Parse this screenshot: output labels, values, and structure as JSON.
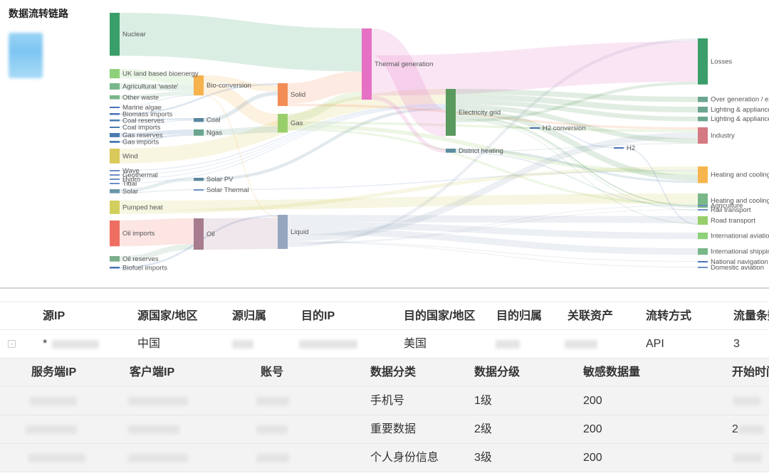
{
  "page": {
    "title": "数据流转链路"
  },
  "chart_data": {
    "type": "sankey",
    "nodes": [
      {
        "id": "n0",
        "label": "Nuclear",
        "color": "#3a9e6a"
      },
      {
        "id": "n1",
        "label": "UK land based bioenergy",
        "color": "#8fd07a"
      },
      {
        "id": "n2",
        "label": "Agricultural 'waste'",
        "color": "#79b788"
      },
      {
        "id": "n3",
        "label": "Other waste",
        "color": "#79b788"
      },
      {
        "id": "n4",
        "label": "Marine algae",
        "color": "#4a72b8"
      },
      {
        "id": "n5",
        "label": "Biomass imports",
        "color": "#4a72b8"
      },
      {
        "id": "n6",
        "label": "Coal reserves",
        "color": "#4a7ab0"
      },
      {
        "id": "n7",
        "label": "Coal imports",
        "color": "#4a7ab0"
      },
      {
        "id": "n8",
        "label": "Gas reserves",
        "color": "#4a7ab0"
      },
      {
        "id": "n9",
        "label": "Gas imports",
        "color": "#4a7ab0"
      },
      {
        "id": "n10",
        "label": "Wind",
        "color": "#d8c95a"
      },
      {
        "id": "n11",
        "label": "Wave",
        "color": "#6b8ec8"
      },
      {
        "id": "n12",
        "label": "Geothermal",
        "color": "#6b8ec8"
      },
      {
        "id": "n13",
        "label": "Hydro",
        "color": "#6b8ec8"
      },
      {
        "id": "n14",
        "label": "Tidal",
        "color": "#6b8ec8"
      },
      {
        "id": "n15",
        "label": "Solar",
        "color": "#6b96a8"
      },
      {
        "id": "n16",
        "label": "Pumped heat",
        "color": "#d3cf5e"
      },
      {
        "id": "n17",
        "label": "Oil imports",
        "color": "#ee6f62"
      },
      {
        "id": "n18",
        "label": "Oil reserves",
        "color": "#7cae8c"
      },
      {
        "id": "n19",
        "label": "Biofuel imports",
        "color": "#4a72b8"
      },
      {
        "id": "n20",
        "label": "Bio-conversion",
        "color": "#f5b24d"
      },
      {
        "id": "n21",
        "label": "Coal",
        "color": "#5a86a0"
      },
      {
        "id": "n22",
        "label": "Ngas",
        "color": "#6aa590"
      },
      {
        "id": "n23",
        "label": "Solar PV",
        "color": "#5a86a0"
      },
      {
        "id": "n24",
        "label": "Solar Thermal",
        "color": "#6b8ec8"
      },
      {
        "id": "n25",
        "label": "Oil",
        "color": "#a67c8e"
      },
      {
        "id": "n26",
        "label": "Solid",
        "color": "#f28d55"
      },
      {
        "id": "n27",
        "label": "Gas",
        "color": "#99cf6b"
      },
      {
        "id": "n28",
        "label": "Liquid",
        "color": "#96a6bf"
      },
      {
        "id": "n29",
        "label": "Thermal generation",
        "color": "#e670c4"
      },
      {
        "id": "n30",
        "label": "Electricity grid",
        "color": "#5a9a5e"
      },
      {
        "id": "n31",
        "label": "District heating",
        "color": "#5a8ea0"
      },
      {
        "id": "n32",
        "label": "H2 conversion",
        "color": "#4a72b8"
      },
      {
        "id": "n33",
        "label": "H2",
        "color": "#4a72b8"
      },
      {
        "id": "n34",
        "label": "Losses",
        "color": "#3a9e6a"
      },
      {
        "id": "n35",
        "label": "Over generation / exports",
        "color": "#6aa590"
      },
      {
        "id": "n36",
        "label": "Lighting & appliances - domestic",
        "color": "#6aa590"
      },
      {
        "id": "n37",
        "label": "Lighting & appliances - commercial",
        "color": "#6aa590"
      },
      {
        "id": "n38",
        "label": "Industry",
        "color": "#d57a82"
      },
      {
        "id": "n39",
        "label": "Heating and cooling - homes",
        "color": "#f6b64d"
      },
      {
        "id": "n40",
        "label": "Heating and cooling - commercial",
        "color": "#79b788"
      },
      {
        "id": "n41",
        "label": "Agriculture",
        "color": "#6b8ec8"
      },
      {
        "id": "n42",
        "label": "Rail transport",
        "color": "#6b8ec8"
      },
      {
        "id": "n43",
        "label": "Road transport",
        "color": "#99cf6b"
      },
      {
        "id": "n44",
        "label": "International aviation",
        "color": "#8fd07a"
      },
      {
        "id": "n45",
        "label": "International shipping",
        "color": "#79b788"
      },
      {
        "id": "n46",
        "label": "National navigation",
        "color": "#4a72b8"
      },
      {
        "id": "n47",
        "label": "Domestic aviation",
        "color": "#6b8ec8"
      }
    ],
    "links": [
      {
        "source": "n0",
        "target": "n29",
        "value": 839
      },
      {
        "source": "n1",
        "target": "n20",
        "value": 182
      },
      {
        "source": "n2",
        "target": "n20",
        "value": 124
      },
      {
        "source": "n3",
        "target": "n20",
        "value": 78
      },
      {
        "source": "n4",
        "target": "n20",
        "value": 4
      },
      {
        "source": "n5",
        "target": "n26",
        "value": 35
      },
      {
        "source": "n6",
        "target": "n21",
        "value": 35
      },
      {
        "source": "n7",
        "target": "n21",
        "value": 11
      },
      {
        "source": "n8",
        "target": "n22",
        "value": 82
      },
      {
        "source": "n9",
        "target": "n22",
        "value": 40
      },
      {
        "source": "n10",
        "target": "n30",
        "value": 289
      },
      {
        "source": "n11",
        "target": "n30",
        "value": 19
      },
      {
        "source": "n12",
        "target": "n30",
        "value": 7
      },
      {
        "source": "n13",
        "target": "n30",
        "value": 7
      },
      {
        "source": "n14",
        "target": "n30",
        "value": 9
      },
      {
        "source": "n15",
        "target": "n23",
        "value": 60
      },
      {
        "source": "n15",
        "target": "n24",
        "value": 19
      },
      {
        "source": "n16",
        "target": "n40",
        "value": 193
      },
      {
        "source": "n16",
        "target": "n39",
        "value": 70
      },
      {
        "source": "n17",
        "target": "n25",
        "value": 504
      },
      {
        "source": "n18",
        "target": "n25",
        "value": 107
      },
      {
        "source": "n19",
        "target": "n28",
        "value": 35
      },
      {
        "source": "n20",
        "target": "n26",
        "value": 127
      },
      {
        "source": "n20",
        "target": "n27",
        "value": 244
      },
      {
        "source": "n20",
        "target": "n28",
        "value": 20
      },
      {
        "source": "n21",
        "target": "n26",
        "value": 75
      },
      {
        "source": "n22",
        "target": "n27",
        "value": 122
      },
      {
        "source": "n23",
        "target": "n30",
        "value": 59
      },
      {
        "source": "n24",
        "target": "n39",
        "value": 19
      },
      {
        "source": "n25",
        "target": "n28",
        "value": 611
      },
      {
        "source": "n26",
        "target": "n29",
        "value": 400
      },
      {
        "source": "n26",
        "target": "n38",
        "value": 46
      },
      {
        "source": "n27",
        "target": "n29",
        "value": 151
      },
      {
        "source": "n27",
        "target": "n38",
        "value": 48
      },
      {
        "source": "n27",
        "target": "n39",
        "value": 80
      },
      {
        "source": "n27",
        "target": "n40",
        "value": 42
      },
      {
        "source": "n28",
        "target": "n43",
        "value": 137
      },
      {
        "source": "n28",
        "target": "n44",
        "value": 128
      },
      {
        "source": "n28",
        "target": "n45",
        "value": 128
      },
      {
        "source": "n28",
        "target": "n38",
        "value": 121
      },
      {
        "source": "n28",
        "target": "n46",
        "value": 15
      },
      {
        "source": "n28",
        "target": "n47",
        "value": 15
      },
      {
        "source": "n28",
        "target": "n41",
        "value": 10
      },
      {
        "source": "n28",
        "target": "n42",
        "value": 8
      },
      {
        "source": "n28",
        "target": "n34",
        "value": 57
      },
      {
        "source": "n29",
        "target": "n30",
        "value": 525
      },
      {
        "source": "n29",
        "target": "n34",
        "value": 787
      },
      {
        "source": "n29",
        "target": "n31",
        "value": 79
      },
      {
        "source": "n30",
        "target": "n35",
        "value": 104
      },
      {
        "source": "n30",
        "target": "n36",
        "value": 114
      },
      {
        "source": "n30",
        "target": "n37",
        "value": 90
      },
      {
        "source": "n30",
        "target": "n38",
        "value": 93
      },
      {
        "source": "n30",
        "target": "n39",
        "value": 110
      },
      {
        "source": "n30",
        "target": "n40",
        "value": 23
      },
      {
        "source": "n30",
        "target": "n41",
        "value": 12
      },
      {
        "source": "n30",
        "target": "n42",
        "value": 6
      },
      {
        "source": "n30",
        "target": "n43",
        "value": 10
      },
      {
        "source": "n30",
        "target": "n32",
        "value": 20
      },
      {
        "source": "n30",
        "target": "n34",
        "value": 56
      },
      {
        "source": "n31",
        "target": "n39",
        "value": 46
      },
      {
        "source": "n31",
        "target": "n38",
        "value": 12
      },
      {
        "source": "n31",
        "target": "n40",
        "value": 21
      },
      {
        "source": "n32",
        "target": "n33",
        "value": 20
      },
      {
        "source": "n33",
        "target": "n43",
        "value": 20
      }
    ]
  },
  "main_table": {
    "columns": [
      "源IP",
      "源国家/地区",
      "源归属",
      "目的IP",
      "目的国家/地区",
      "目的归属",
      "关联资产",
      "流转方式",
      "流量条数"
    ],
    "row": {
      "expand_symbol": "-",
      "src_ip_prefix": "*",
      "src_country": "中国",
      "dst_country": "美国",
      "flow_method": "API",
      "flow_count": "3"
    }
  },
  "sub_table": {
    "columns": [
      "服务端IP",
      "客户端IP",
      "账号",
      "数据分类",
      "数据分级",
      "敏感数据量",
      "开始时间"
    ],
    "rows": [
      {
        "category": "手机号",
        "level": "1级",
        "sensitive_count": "200"
      },
      {
        "category": "重要数据",
        "level": "2级",
        "sensitive_count": "200",
        "start_time_prefix": "2"
      },
      {
        "category": "个人身份信息",
        "level": "3级",
        "sensitive_count": "200"
      }
    ]
  }
}
